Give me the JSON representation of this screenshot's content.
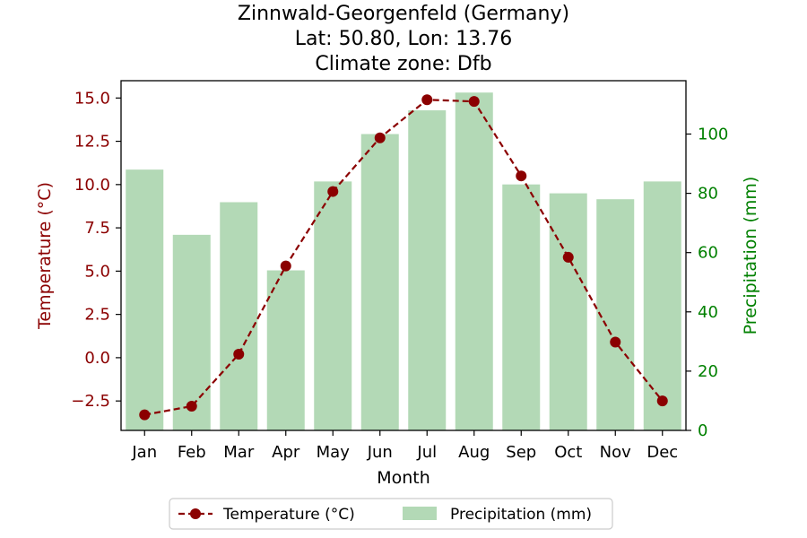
{
  "chart_data": {
    "type": "bar+line",
    "title_lines": [
      "Zinnwald-Georgenfeld (Germany)",
      "Lat: 50.80, Lon: 13.76",
      "Climate zone: Dfb"
    ],
    "xlabel": "Month",
    "categories": [
      "Jan",
      "Feb",
      "Mar",
      "Apr",
      "May",
      "Jun",
      "Jul",
      "Aug",
      "Sep",
      "Oct",
      "Nov",
      "Dec"
    ],
    "temperature": {
      "name": "Temperature (°C)",
      "axis_label": "Temperature (°C)",
      "values": [
        -3.3,
        -2.8,
        0.2,
        5.3,
        9.6,
        12.7,
        14.9,
        14.8,
        10.5,
        5.8,
        0.9,
        -2.5
      ],
      "ylim": [
        -4.2,
        16.0
      ],
      "ticks": [
        -2.5,
        0.0,
        2.5,
        5.0,
        7.5,
        10.0,
        12.5,
        15.0
      ],
      "tick_labels": [
        "−2.5",
        "0.0",
        "2.5",
        "5.0",
        "7.5",
        "10.0",
        "12.5",
        "15.0"
      ],
      "color": "#8b0000",
      "marker_color": "#8b0000"
    },
    "precipitation": {
      "name": "Precipitation (mm)",
      "axis_label": "Precipitation (mm)",
      "values": [
        88,
        66,
        77,
        54,
        84,
        100,
        108,
        114,
        83,
        80,
        78,
        84
      ],
      "ylim": [
        0,
        118
      ],
      "ticks": [
        0,
        20,
        40,
        60,
        80,
        100
      ],
      "tick_labels": [
        "0",
        "20",
        "40",
        "60",
        "80",
        "100"
      ],
      "bar_color": "#b3d9b6",
      "axis_color": "#008000"
    },
    "legend_position": "bottom-center",
    "grid": false
  }
}
